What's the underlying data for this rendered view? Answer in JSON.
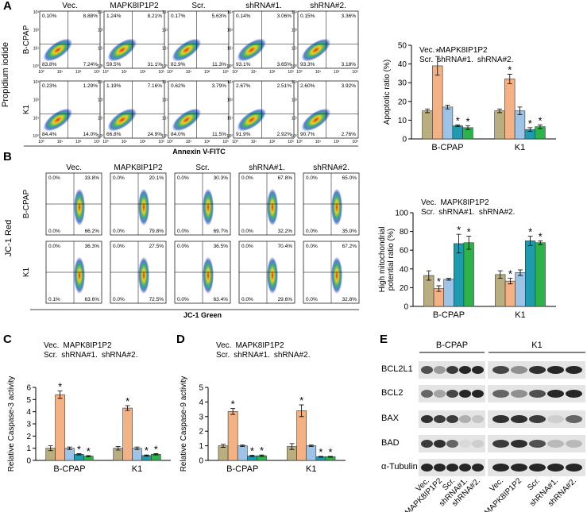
{
  "panel_labels": [
    "A",
    "B",
    "C",
    "D",
    "E"
  ],
  "flow_a": {
    "columns": [
      "Vec.",
      "MAPK8IP1P2",
      "Scr.",
      "shRNA#1.",
      "shRNA#2."
    ],
    "rows": [
      "B-CPAP",
      "K1"
    ],
    "ylabel": "Propidium iodide",
    "xlabel": "Annexin V-FITC",
    "ticks": [
      "10⁰",
      "10¹",
      "10²",
      "10³"
    ],
    "quadrants": [
      [
        [
          "0.10%",
          "8.88%",
          "83.8%",
          "7.24%"
        ],
        [
          "1.24%",
          "8.21%",
          "59.5%",
          "31.1%"
        ],
        [
          "0.17%",
          "5.63%",
          "82.9%",
          "11.3%"
        ],
        [
          "0.14%",
          "3.06%",
          "93.1%",
          "3.65%"
        ],
        [
          "0.15%",
          "3.36%",
          "93.3%",
          "3.18%"
        ]
      ],
      [
        [
          "0.23%",
          "1.29%",
          "84.4%",
          "14.0%"
        ],
        [
          "1.19%",
          "7.16%",
          "66.8%",
          "24.9%"
        ],
        [
          "0.62%",
          "3.79%",
          "84.0%",
          "11.5%"
        ],
        [
          "2.67%",
          "2.51%",
          "91.9%",
          "2.92%"
        ],
        [
          "2.60%",
          "3.92%",
          "90.7%",
          "2.76%"
        ]
      ]
    ]
  },
  "flow_b": {
    "columns": [
      "Vec.",
      "MAPK8IP1P2",
      "Scr.",
      "shRNA#1.",
      "shRNA#2."
    ],
    "rows": [
      "B-CPAP",
      "K1"
    ],
    "ylabel": "JC-1 Red",
    "xlabel": "JC-1 Green",
    "quadrants": [
      [
        [
          "0.0%",
          "33.8%",
          "0.0%",
          "66.2%"
        ],
        [
          "0.0%",
          "20.1%",
          "0.0%",
          "79.8%"
        ],
        [
          "0.0%",
          "30.3%",
          "0.0%",
          "69.7%"
        ],
        [
          "0.0%",
          "67.8%",
          "0.0%",
          "32.2%"
        ],
        [
          "0.0%",
          "65.0%",
          "0.0%",
          "35.0%"
        ]
      ],
      [
        [
          "0.0%",
          "36.3%",
          "0.1%",
          "63.6%"
        ],
        [
          "0.0%",
          "27.5%",
          "0.0%",
          "72.5%"
        ],
        [
          "0.0%",
          "36.5%",
          "0.0%",
          "63.4%"
        ],
        [
          "0.0%",
          "70.4%",
          "0.0%",
          "29.6%"
        ],
        [
          "0.0%",
          "67.2%",
          "0.0%",
          "32.8%"
        ]
      ]
    ]
  },
  "blot": {
    "groups": [
      "B-CPAP",
      "K1"
    ],
    "proteins": [
      "BCL2L1",
      "BCL2",
      "BAX",
      "BAD",
      "α-Tubulin"
    ],
    "lanes": [
      "Vec.",
      "MAPK8IP1P2",
      "Scr.",
      "shRNA#1.",
      "shRNA#2."
    ]
  },
  "chart_data": [
    {
      "type": "bar",
      "ylabel": [
        "Apoptotic ratio (%)"
      ],
      "categories": [
        "B-CPAP",
        "K1"
      ],
      "ylim": [
        0,
        50
      ],
      "yticks": [
        0,
        10,
        20,
        30,
        40,
        50
      ],
      "star": "*",
      "series": [
        {
          "name": "Vec.",
          "color": "#b9ae7f",
          "values": [
            15,
            15
          ],
          "errors": [
            1,
            1
          ],
          "significant": [
            false,
            false
          ]
        },
        {
          "name": "MAPK8IP1P2",
          "color": "#f4b183",
          "values": [
            39,
            32
          ],
          "errors": [
            5,
            2.5
          ],
          "significant": [
            true,
            true
          ]
        },
        {
          "name": "Scr.",
          "color": "#9dc3e6",
          "values": [
            17,
            15
          ],
          "errors": [
            1,
            2
          ],
          "significant": [
            false,
            false
          ]
        },
        {
          "name": "shRNA#1.",
          "color": "#1f9bb0",
          "values": [
            7,
            5
          ],
          "errors": [
            0.5,
            1
          ],
          "significant": [
            true,
            true
          ]
        },
        {
          "name": "shRNA#2.",
          "color": "#2db34a",
          "values": [
            6,
            6.5
          ],
          "errors": [
            1,
            1
          ],
          "significant": [
            true,
            true
          ]
        }
      ]
    },
    {
      "type": "bar",
      "ylabel": [
        "High mitochondrial",
        "potential ratio (%)"
      ],
      "categories": [
        "B-CPAP",
        "K1"
      ],
      "ylim": [
        0,
        100
      ],
      "yticks": [
        0,
        20,
        40,
        60,
        80,
        100
      ],
      "star": "*",
      "series": [
        {
          "name": "Vec.",
          "color": "#b9ae7f",
          "values": [
            33,
            34
          ],
          "errors": [
            5,
            4
          ],
          "significant": [
            false,
            false
          ]
        },
        {
          "name": "MAPK8IP1P2",
          "color": "#f4b183",
          "values": [
            19,
            27
          ],
          "errors": [
            3,
            3
          ],
          "significant": [
            true,
            true
          ]
        },
        {
          "name": "Scr.",
          "color": "#9dc3e6",
          "values": [
            29,
            36
          ],
          "errors": [
            1,
            3
          ],
          "significant": [
            false,
            false
          ]
        },
        {
          "name": "shRNA#1.",
          "color": "#1f9bb0",
          "values": [
            67,
            70
          ],
          "errors": [
            10,
            5
          ],
          "significant": [
            true,
            true
          ]
        },
        {
          "name": "shRNA#2.",
          "color": "#2db34a",
          "values": [
            68,
            68
          ],
          "errors": [
            7,
            2
          ],
          "significant": [
            true,
            true
          ]
        }
      ]
    },
    {
      "type": "bar",
      "ylabel": [
        "Relative Caspase-3 activity"
      ],
      "categories": [
        "B-CPAP",
        "K1"
      ],
      "ylim": [
        0,
        6
      ],
      "yticks": [
        0,
        1,
        2,
        3,
        4,
        5,
        6
      ],
      "star": "*",
      "series": [
        {
          "name": "Vec.",
          "color": "#b9ae7f",
          "values": [
            1.0,
            1.0
          ],
          "errors": [
            0.2,
            0.15
          ],
          "significant": [
            false,
            false
          ]
        },
        {
          "name": "MAPK8IP1P2",
          "color": "#f4b183",
          "values": [
            5.4,
            4.3
          ],
          "errors": [
            0.3,
            0.2
          ],
          "significant": [
            true,
            true
          ]
        },
        {
          "name": "Scr.",
          "color": "#9dc3e6",
          "values": [
            1.0,
            1.0
          ],
          "errors": [
            0.1,
            0.1
          ],
          "significant": [
            false,
            false
          ]
        },
        {
          "name": "shRNA#1.",
          "color": "#1f9bb0",
          "values": [
            0.5,
            0.4
          ],
          "errors": [
            0.05,
            0.05
          ],
          "significant": [
            true,
            true
          ]
        },
        {
          "name": "shRNA#2.",
          "color": "#2db34a",
          "values": [
            0.35,
            0.5
          ],
          "errors": [
            0.05,
            0.05
          ],
          "significant": [
            true,
            true
          ]
        }
      ]
    },
    {
      "type": "bar",
      "ylabel": [
        "Relative Caspase-9 activity"
      ],
      "categories": [
        "B-CPAP",
        "K1"
      ],
      "ylim": [
        0,
        5
      ],
      "yticks": [
        0,
        1,
        2,
        3,
        4,
        5
      ],
      "star": "*",
      "series": [
        {
          "name": "Vec.",
          "color": "#b9ae7f",
          "values": [
            1.0,
            0.95
          ],
          "errors": [
            0.1,
            0.2
          ],
          "significant": [
            false,
            false
          ]
        },
        {
          "name": "MAPK8IP1P2",
          "color": "#f4b183",
          "values": [
            3.35,
            3.4
          ],
          "errors": [
            0.2,
            0.4
          ],
          "significant": [
            true,
            true
          ]
        },
        {
          "name": "Scr.",
          "color": "#9dc3e6",
          "values": [
            1.0,
            1.0
          ],
          "errors": [
            0.05,
            0.05
          ],
          "significant": [
            false,
            false
          ]
        },
        {
          "name": "shRNA#1.",
          "color": "#1f9bb0",
          "values": [
            0.3,
            0.25
          ],
          "errors": [
            0.05,
            0.03
          ],
          "significant": [
            true,
            true
          ]
        },
        {
          "name": "shRNA#2.",
          "color": "#2db34a",
          "values": [
            0.32,
            0.25
          ],
          "errors": [
            0.05,
            0.03
          ],
          "significant": [
            true,
            true
          ]
        }
      ]
    }
  ]
}
